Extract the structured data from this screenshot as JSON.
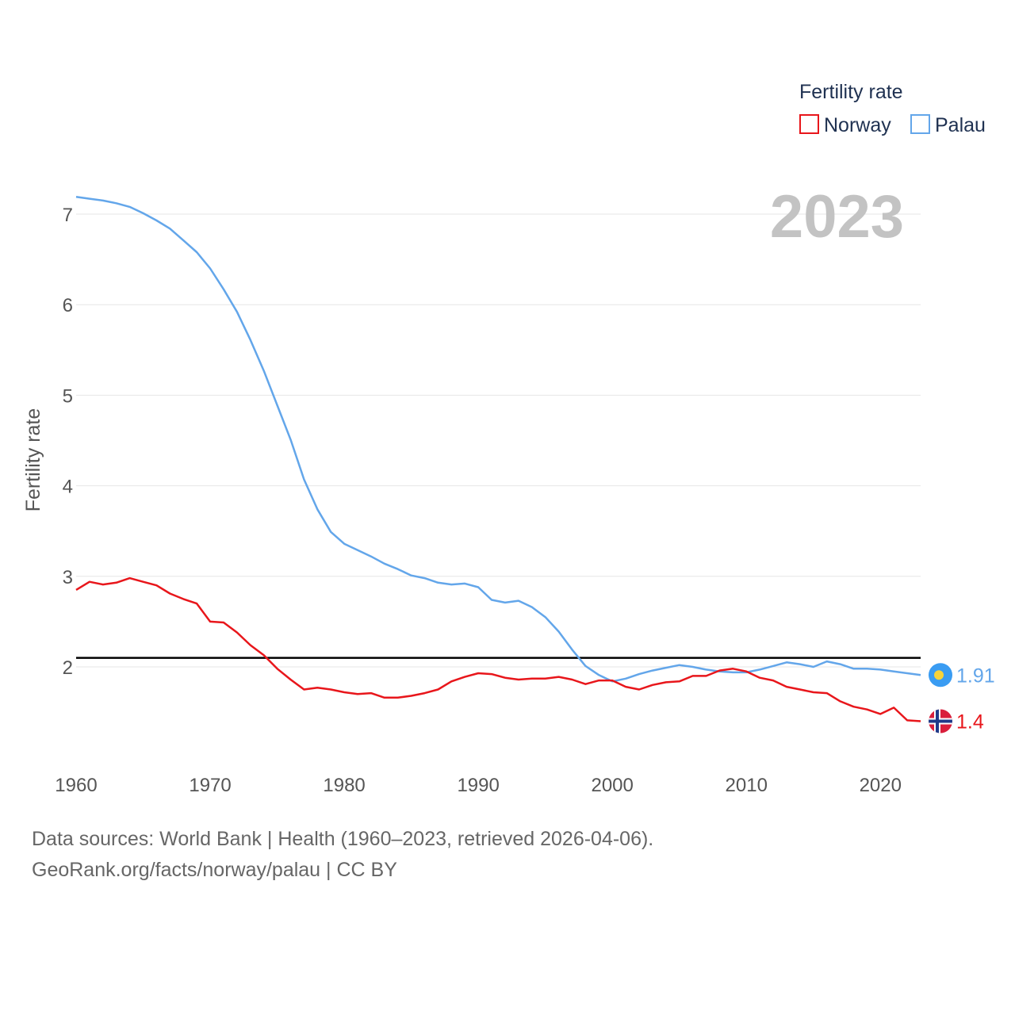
{
  "chart_data": {
    "type": "line",
    "title": "",
    "ylabel": "Fertility rate",
    "xlabel": "",
    "xlim": [
      1960,
      2023
    ],
    "ylim": [
      1.1,
      7.3
    ],
    "yticks": [
      2,
      3,
      4,
      5,
      6,
      7
    ],
    "xticks": [
      1960,
      1970,
      1980,
      1990,
      2000,
      2010,
      2020
    ],
    "reference_line": 2.1,
    "year_label": "2023",
    "legend": {
      "title": "Fertility rate",
      "placement": "top-right"
    },
    "series": [
      {
        "name": "Norway",
        "color": "#e8161b",
        "end_label": "1.4",
        "flag": "norway-flag",
        "x": [
          1960,
          1961,
          1962,
          1963,
          1964,
          1965,
          1966,
          1967,
          1968,
          1969,
          1970,
          1971,
          1972,
          1973,
          1974,
          1975,
          1976,
          1977,
          1978,
          1979,
          1980,
          1981,
          1982,
          1983,
          1984,
          1985,
          1986,
          1987,
          1988,
          1989,
          1990,
          1991,
          1992,
          1993,
          1994,
          1995,
          1996,
          1997,
          1998,
          1999,
          2000,
          2001,
          2002,
          2003,
          2004,
          2005,
          2006,
          2007,
          2008,
          2009,
          2010,
          2011,
          2012,
          2013,
          2014,
          2015,
          2016,
          2017,
          2018,
          2019,
          2020,
          2021,
          2022,
          2023
        ],
        "values": [
          2.85,
          2.94,
          2.91,
          2.93,
          2.98,
          2.94,
          2.9,
          2.81,
          2.75,
          2.7,
          2.5,
          2.49,
          2.38,
          2.24,
          2.13,
          1.98,
          1.86,
          1.75,
          1.77,
          1.75,
          1.72,
          1.7,
          1.71,
          1.66,
          1.66,
          1.68,
          1.71,
          1.75,
          1.84,
          1.89,
          1.93,
          1.92,
          1.88,
          1.86,
          1.87,
          1.87,
          1.89,
          1.86,
          1.81,
          1.85,
          1.85,
          1.78,
          1.75,
          1.8,
          1.83,
          1.84,
          1.9,
          1.9,
          1.96,
          1.98,
          1.95,
          1.88,
          1.85,
          1.78,
          1.75,
          1.72,
          1.71,
          1.62,
          1.56,
          1.53,
          1.48,
          1.55,
          1.41,
          1.4
        ]
      },
      {
        "name": "Palau",
        "color": "#63a6ea",
        "end_label": "1.91",
        "flag": "palau-flag",
        "x": [
          1960,
          1961,
          1962,
          1963,
          1964,
          1965,
          1966,
          1967,
          1968,
          1969,
          1970,
          1971,
          1972,
          1973,
          1974,
          1975,
          1976,
          1977,
          1978,
          1979,
          1980,
          1981,
          1982,
          1983,
          1984,
          1985,
          1986,
          1987,
          1988,
          1989,
          1990,
          1991,
          1992,
          1993,
          1994,
          1995,
          1996,
          1997,
          1998,
          1999,
          2000,
          2001,
          2002,
          2003,
          2004,
          2005,
          2006,
          2007,
          2008,
          2009,
          2010,
          2011,
          2012,
          2013,
          2014,
          2015,
          2016,
          2017,
          2018,
          2019,
          2020,
          2021,
          2022,
          2023
        ],
        "values": [
          7.19,
          7.17,
          7.15,
          7.12,
          7.08,
          7.01,
          6.93,
          6.84,
          6.71,
          6.58,
          6.4,
          6.17,
          5.92,
          5.61,
          5.27,
          4.89,
          4.51,
          4.07,
          3.74,
          3.49,
          3.36,
          3.29,
          3.22,
          3.14,
          3.08,
          3.01,
          2.98,
          2.93,
          2.91,
          2.92,
          2.88,
          2.74,
          2.71,
          2.73,
          2.66,
          2.55,
          2.39,
          2.19,
          2.01,
          1.91,
          1.84,
          1.87,
          1.92,
          1.96,
          1.99,
          2.02,
          2.0,
          1.97,
          1.95,
          1.94,
          1.94,
          1.97,
          2.01,
          2.05,
          2.03,
          2.0,
          2.06,
          2.03,
          1.98,
          1.98,
          1.97,
          1.95,
          1.93,
          1.91
        ]
      }
    ]
  },
  "footer": {
    "line1": "Data sources: World Bank | Health (1960–2023, retrieved 2026-04-06).",
    "line2": "GeoRank.org/facts/norway/palau | CC BY"
  }
}
